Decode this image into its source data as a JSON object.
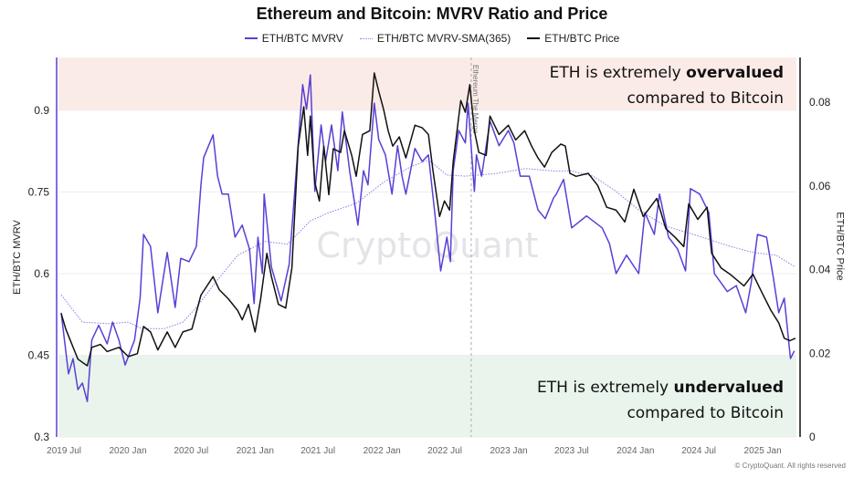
{
  "chart_data": {
    "type": "line",
    "title": "Ethereum and Bitcoin: MVRV Ratio and Price",
    "ylabel_left": "ETH/BTC MVRV",
    "ylabel_right": "ETH/BTC Price",
    "xlim": [
      "2019-06-15",
      "2025-04-08"
    ],
    "ylim_left": [
      0.3,
      0.997
    ],
    "ylim_right": [
      0,
      0.0907
    ],
    "yticks_left": [
      "0.3",
      "0.45",
      "0.6",
      "0.75",
      "0.9"
    ],
    "yticks_right": [
      "0",
      "0.02",
      "0.04",
      "0.06",
      "0.08"
    ],
    "xticks": [
      {
        "date": "2019-07-01",
        "label": "2019 Jul"
      },
      {
        "date": "2020-01-01",
        "label": "2020 Jan"
      },
      {
        "date": "2020-07-01",
        "label": "2020 Jul"
      },
      {
        "date": "2021-01-01",
        "label": "2021 Jan"
      },
      {
        "date": "2021-07-01",
        "label": "2021 Jul"
      },
      {
        "date": "2022-01-01",
        "label": "2022 Jan"
      },
      {
        "date": "2022-07-01",
        "label": "2022 Jul"
      },
      {
        "date": "2023-01-01",
        "label": "2023 Jan"
      },
      {
        "date": "2023-07-01",
        "label": "2023 Jul"
      },
      {
        "date": "2024-01-01",
        "label": "2024 Jan"
      },
      {
        "date": "2024-07-01",
        "label": "2024 Jul"
      },
      {
        "date": "2025-01-01",
        "label": "2025 Jan"
      }
    ],
    "grid": true,
    "legend_position": "top-center",
    "zones": [
      {
        "name": "overvalued",
        "from": 0.9,
        "to": 0.997,
        "color": "#fbebe6"
      },
      {
        "name": "undervalued",
        "from": 0.3,
        "to": 0.45,
        "color": "#e9f5ec"
      }
    ],
    "event_marker": {
      "date": "2022-09-15",
      "label": "Ethereum The Merge"
    },
    "series": [
      {
        "name": "ETH/BTC MVRV",
        "axis": "left",
        "color": "#5a3fd6",
        "points": [
          [
            "2019-06-23",
            0.528
          ],
          [
            "2019-07-14",
            0.416
          ],
          [
            "2019-07-27",
            0.444
          ],
          [
            "2019-08-10",
            0.387
          ],
          [
            "2019-08-23",
            0.399
          ],
          [
            "2019-09-06",
            0.365
          ],
          [
            "2019-09-19",
            0.478
          ],
          [
            "2019-10-09",
            0.505
          ],
          [
            "2019-11-02",
            0.471
          ],
          [
            "2019-11-18",
            0.511
          ],
          [
            "2019-12-06",
            0.478
          ],
          [
            "2019-12-24",
            0.432
          ],
          [
            "2020-01-20",
            0.478
          ],
          [
            "2020-02-05",
            0.555
          ],
          [
            "2020-02-15",
            0.672
          ],
          [
            "2020-03-06",
            0.65
          ],
          [
            "2020-03-27",
            0.528
          ],
          [
            "2020-04-23",
            0.639
          ],
          [
            "2020-05-16",
            0.538
          ],
          [
            "2020-06-01",
            0.628
          ],
          [
            "2020-06-25",
            0.622
          ],
          [
            "2020-07-16",
            0.65
          ],
          [
            "2020-07-29",
            0.763
          ],
          [
            "2020-08-06",
            0.813
          ],
          [
            "2020-09-02",
            0.855
          ],
          [
            "2020-09-15",
            0.779
          ],
          [
            "2020-09-28",
            0.746
          ],
          [
            "2020-10-16",
            0.746
          ],
          [
            "2020-11-04",
            0.667
          ],
          [
            "2020-11-25",
            0.689
          ],
          [
            "2020-12-16",
            0.645
          ],
          [
            "2020-12-29",
            0.545
          ],
          [
            "2021-01-09",
            0.667
          ],
          [
            "2021-01-22",
            0.6
          ],
          [
            "2021-01-27",
            0.746
          ],
          [
            "2021-02-17",
            0.612
          ],
          [
            "2021-03-17",
            0.55
          ],
          [
            "2021-04-09",
            0.617
          ],
          [
            "2021-04-25",
            0.751
          ],
          [
            "2021-05-08",
            0.863
          ],
          [
            "2021-05-18",
            0.947
          ],
          [
            "2021-05-29",
            0.902
          ],
          [
            "2021-06-09",
            0.965
          ],
          [
            "2021-06-22",
            0.751
          ],
          [
            "2021-07-10",
            0.873
          ],
          [
            "2021-07-23",
            0.806
          ],
          [
            "2021-08-09",
            0.873
          ],
          [
            "2021-08-27",
            0.789
          ],
          [
            "2021-09-09",
            0.897
          ],
          [
            "2021-09-30",
            0.789
          ],
          [
            "2021-10-24",
            0.689
          ],
          [
            "2021-11-09",
            0.789
          ],
          [
            "2021-11-22",
            0.763
          ],
          [
            "2021-12-10",
            0.913
          ],
          [
            "2021-12-23",
            0.846
          ],
          [
            "2022-01-11",
            0.818
          ],
          [
            "2022-01-30",
            0.746
          ],
          [
            "2022-02-15",
            0.835
          ],
          [
            "2022-02-28",
            0.779
          ],
          [
            "2022-03-11",
            0.746
          ],
          [
            "2022-04-06",
            0.83
          ],
          [
            "2022-04-27",
            0.806
          ],
          [
            "2022-05-15",
            0.818
          ],
          [
            "2022-06-03",
            0.706
          ],
          [
            "2022-06-19",
            0.605
          ],
          [
            "2022-07-07",
            0.667
          ],
          [
            "2022-07-17",
            0.622
          ],
          [
            "2022-07-25",
            0.789
          ],
          [
            "2022-08-10",
            0.863
          ],
          [
            "2022-08-29",
            0.84
          ],
          [
            "2022-09-06",
            0.913
          ],
          [
            "2022-09-24",
            0.751
          ],
          [
            "2022-09-30",
            0.818
          ],
          [
            "2022-10-15",
            0.779
          ],
          [
            "2022-11-08",
            0.88
          ],
          [
            "2022-12-04",
            0.835
          ],
          [
            "2022-12-31",
            0.863
          ],
          [
            "2023-01-16",
            0.84
          ],
          [
            "2023-02-03",
            0.779
          ],
          [
            "2023-03-01",
            0.779
          ],
          [
            "2023-03-26",
            0.717
          ],
          [
            "2023-04-16",
            0.701
          ],
          [
            "2023-05-10",
            0.739
          ],
          [
            "2023-05-18",
            0.746
          ],
          [
            "2023-06-08",
            0.773
          ],
          [
            "2023-07-01",
            0.684
          ],
          [
            "2023-08-13",
            0.706
          ],
          [
            "2023-09-27",
            0.684
          ],
          [
            "2023-10-18",
            0.655
          ],
          [
            "2023-11-06",
            0.6
          ],
          [
            "2023-12-06",
            0.634
          ],
          [
            "2024-01-10",
            0.6
          ],
          [
            "2024-01-28",
            0.712
          ],
          [
            "2024-02-24",
            0.672
          ],
          [
            "2024-03-10",
            0.746
          ],
          [
            "2024-04-05",
            0.667
          ],
          [
            "2024-05-01",
            0.645
          ],
          [
            "2024-05-24",
            0.605
          ],
          [
            "2024-06-07",
            0.756
          ],
          [
            "2024-07-04",
            0.746
          ],
          [
            "2024-07-30",
            0.712
          ],
          [
            "2024-08-15",
            0.6
          ],
          [
            "2024-09-21",
            0.567
          ],
          [
            "2024-10-17",
            0.578
          ],
          [
            "2024-11-13",
            0.528
          ],
          [
            "2024-11-29",
            0.583
          ],
          [
            "2024-12-17",
            0.672
          ],
          [
            "2025-01-12",
            0.667
          ],
          [
            "2025-01-31",
            0.595
          ],
          [
            "2025-02-16",
            0.528
          ],
          [
            "2025-03-04",
            0.555
          ],
          [
            "2025-03-22",
            0.444
          ],
          [
            "2025-04-02",
            0.458
          ]
        ]
      },
      {
        "name": "ETH/BTC MVRV-SMA(365)",
        "axis": "left",
        "color": "#8c7ce6",
        "points": [
          [
            "2019-06-23",
            0.561
          ],
          [
            "2019-08-23",
            0.511
          ],
          [
            "2019-11-10",
            0.508
          ],
          [
            "2020-01-02",
            0.511
          ],
          [
            "2020-02-10",
            0.499
          ],
          [
            "2020-04-15",
            0.499
          ],
          [
            "2020-06-07",
            0.511
          ],
          [
            "2020-07-16",
            0.538
          ],
          [
            "2020-09-02",
            0.578
          ],
          [
            "2020-11-12",
            0.634
          ],
          [
            "2021-01-30",
            0.659
          ],
          [
            "2021-04-04",
            0.654
          ],
          [
            "2021-06-09",
            0.697
          ],
          [
            "2021-08-01",
            0.712
          ],
          [
            "2021-10-19",
            0.729
          ],
          [
            "2022-01-06",
            0.768
          ],
          [
            "2022-03-24",
            0.796
          ],
          [
            "2022-05-15",
            0.809
          ],
          [
            "2022-07-07",
            0.781
          ],
          [
            "2022-08-29",
            0.779
          ],
          [
            "2022-11-29",
            0.784
          ],
          [
            "2023-02-16",
            0.793
          ],
          [
            "2023-05-18",
            0.788
          ],
          [
            "2023-06-26",
            0.789
          ],
          [
            "2023-09-01",
            0.779
          ],
          [
            "2023-11-06",
            0.751
          ],
          [
            "2024-01-10",
            0.717
          ],
          [
            "2024-03-28",
            0.687
          ],
          [
            "2024-07-11",
            0.667
          ],
          [
            "2024-09-29",
            0.65
          ],
          [
            "2024-12-04",
            0.639
          ],
          [
            "2025-02-08",
            0.634
          ],
          [
            "2025-04-05",
            0.612
          ]
        ]
      },
      {
        "name": "ETH/BTC Price",
        "axis": "right",
        "color": "#111111",
        "points": [
          [
            "2019-06-23",
            0.0295
          ],
          [
            "2019-07-06",
            0.0258
          ],
          [
            "2019-08-10",
            0.0186
          ],
          [
            "2019-09-06",
            0.017
          ],
          [
            "2019-09-19",
            0.0214
          ],
          [
            "2019-10-14",
            0.0221
          ],
          [
            "2019-11-02",
            0.0204
          ],
          [
            "2019-12-06",
            0.0214
          ],
          [
            "2020-01-02",
            0.0192
          ],
          [
            "2020-01-28",
            0.0199
          ],
          [
            "2020-02-15",
            0.0264
          ],
          [
            "2020-03-06",
            0.0251
          ],
          [
            "2020-03-27",
            0.0208
          ],
          [
            "2020-04-23",
            0.0251
          ],
          [
            "2020-05-16",
            0.0214
          ],
          [
            "2020-06-07",
            0.0251
          ],
          [
            "2020-07-03",
            0.0258
          ],
          [
            "2020-07-29",
            0.0339
          ],
          [
            "2020-09-02",
            0.0383
          ],
          [
            "2020-09-20",
            0.0352
          ],
          [
            "2020-10-16",
            0.033
          ],
          [
            "2020-11-12",
            0.0302
          ],
          [
            "2020-11-25",
            0.028
          ],
          [
            "2020-12-13",
            0.0317
          ],
          [
            "2021-01-01",
            0.0251
          ],
          [
            "2021-01-17",
            0.033
          ],
          [
            "2021-02-04",
            0.0439
          ],
          [
            "2021-02-17",
            0.0383
          ],
          [
            "2021-03-09",
            0.0317
          ],
          [
            "2021-03-30",
            0.0308
          ],
          [
            "2021-04-17",
            0.0404
          ],
          [
            "2021-05-05",
            0.0695
          ],
          [
            "2021-05-21",
            0.0789
          ],
          [
            "2021-06-01",
            0.0673
          ],
          [
            "2021-06-09",
            0.0767
          ],
          [
            "2021-06-22",
            0.0608
          ],
          [
            "2021-07-05",
            0.0564
          ],
          [
            "2021-07-18",
            0.0695
          ],
          [
            "2021-08-01",
            0.0579
          ],
          [
            "2021-08-14",
            0.0689
          ],
          [
            "2021-09-04",
            0.068
          ],
          [
            "2021-09-15",
            0.0732
          ],
          [
            "2021-10-06",
            0.0673
          ],
          [
            "2021-10-19",
            0.0623
          ],
          [
            "2021-11-06",
            0.0723
          ],
          [
            "2021-11-27",
            0.0732
          ],
          [
            "2021-12-10",
            0.087
          ],
          [
            "2021-12-23",
            0.0826
          ],
          [
            "2022-01-06",
            0.0782
          ],
          [
            "2022-01-19",
            0.0732
          ],
          [
            "2022-02-01",
            0.0695
          ],
          [
            "2022-02-20",
            0.0717
          ],
          [
            "2022-03-11",
            0.0667
          ],
          [
            "2022-04-06",
            0.0745
          ],
          [
            "2022-04-27",
            0.0739
          ],
          [
            "2022-05-15",
            0.0723
          ],
          [
            "2022-05-28",
            0.0636
          ],
          [
            "2022-06-16",
            0.0527
          ],
          [
            "2022-06-30",
            0.0564
          ],
          [
            "2022-07-15",
            0.0542
          ],
          [
            "2022-07-25",
            0.0658
          ],
          [
            "2022-08-16",
            0.0804
          ],
          [
            "2022-08-29",
            0.0776
          ],
          [
            "2022-09-11",
            0.0842
          ],
          [
            "2022-09-24",
            0.0732
          ],
          [
            "2022-10-07",
            0.068
          ],
          [
            "2022-10-28",
            0.0673
          ],
          [
            "2022-11-08",
            0.0767
          ],
          [
            "2022-12-04",
            0.0723
          ],
          [
            "2022-12-31",
            0.0745
          ],
          [
            "2023-01-21",
            0.071
          ],
          [
            "2023-02-16",
            0.0732
          ],
          [
            "2023-03-08",
            0.0695
          ],
          [
            "2023-03-26",
            0.0667
          ],
          [
            "2023-04-14",
            0.0645
          ],
          [
            "2023-05-05",
            0.068
          ],
          [
            "2023-05-31",
            0.07
          ],
          [
            "2023-06-13",
            0.0695
          ],
          [
            "2023-06-26",
            0.063
          ],
          [
            "2023-07-14",
            0.0623
          ],
          [
            "2023-08-18",
            0.063
          ],
          [
            "2023-09-14",
            0.0601
          ],
          [
            "2023-10-10",
            0.0549
          ],
          [
            "2023-11-06",
            0.0542
          ],
          [
            "2023-12-01",
            0.0514
          ],
          [
            "2023-12-27",
            0.0592
          ],
          [
            "2024-01-23",
            0.0527
          ],
          [
            "2024-03-02",
            0.057
          ],
          [
            "2024-03-28",
            0.0498
          ],
          [
            "2024-04-24",
            0.0477
          ],
          [
            "2024-05-19",
            0.0455
          ],
          [
            "2024-06-02",
            0.0557
          ],
          [
            "2024-06-28",
            0.052
          ],
          [
            "2024-07-25",
            0.0549
          ],
          [
            "2024-08-07",
            0.0439
          ],
          [
            "2024-09-03",
            0.0404
          ],
          [
            "2024-09-29",
            0.0389
          ],
          [
            "2024-11-08",
            0.0361
          ],
          [
            "2024-12-04",
            0.0389
          ],
          [
            "2024-12-30",
            0.0345
          ],
          [
            "2025-01-25",
            0.0302
          ],
          [
            "2025-02-16",
            0.0273
          ],
          [
            "2025-03-04",
            0.0236
          ],
          [
            "2025-03-20",
            0.023
          ],
          [
            "2025-04-05",
            0.0236
          ]
        ]
      }
    ]
  },
  "annotations": {
    "over_prefix": "ETH is extremely ",
    "over_bold": "overvalued",
    "over_line2": "compared to Bitcoin",
    "under_prefix": "ETH is extremely ",
    "under_bold": "undervalued",
    "under_line2": "compared to Bitcoin"
  },
  "watermark": "CryptoQuant",
  "copyright": "© CryptoQuant. All rights reserved"
}
